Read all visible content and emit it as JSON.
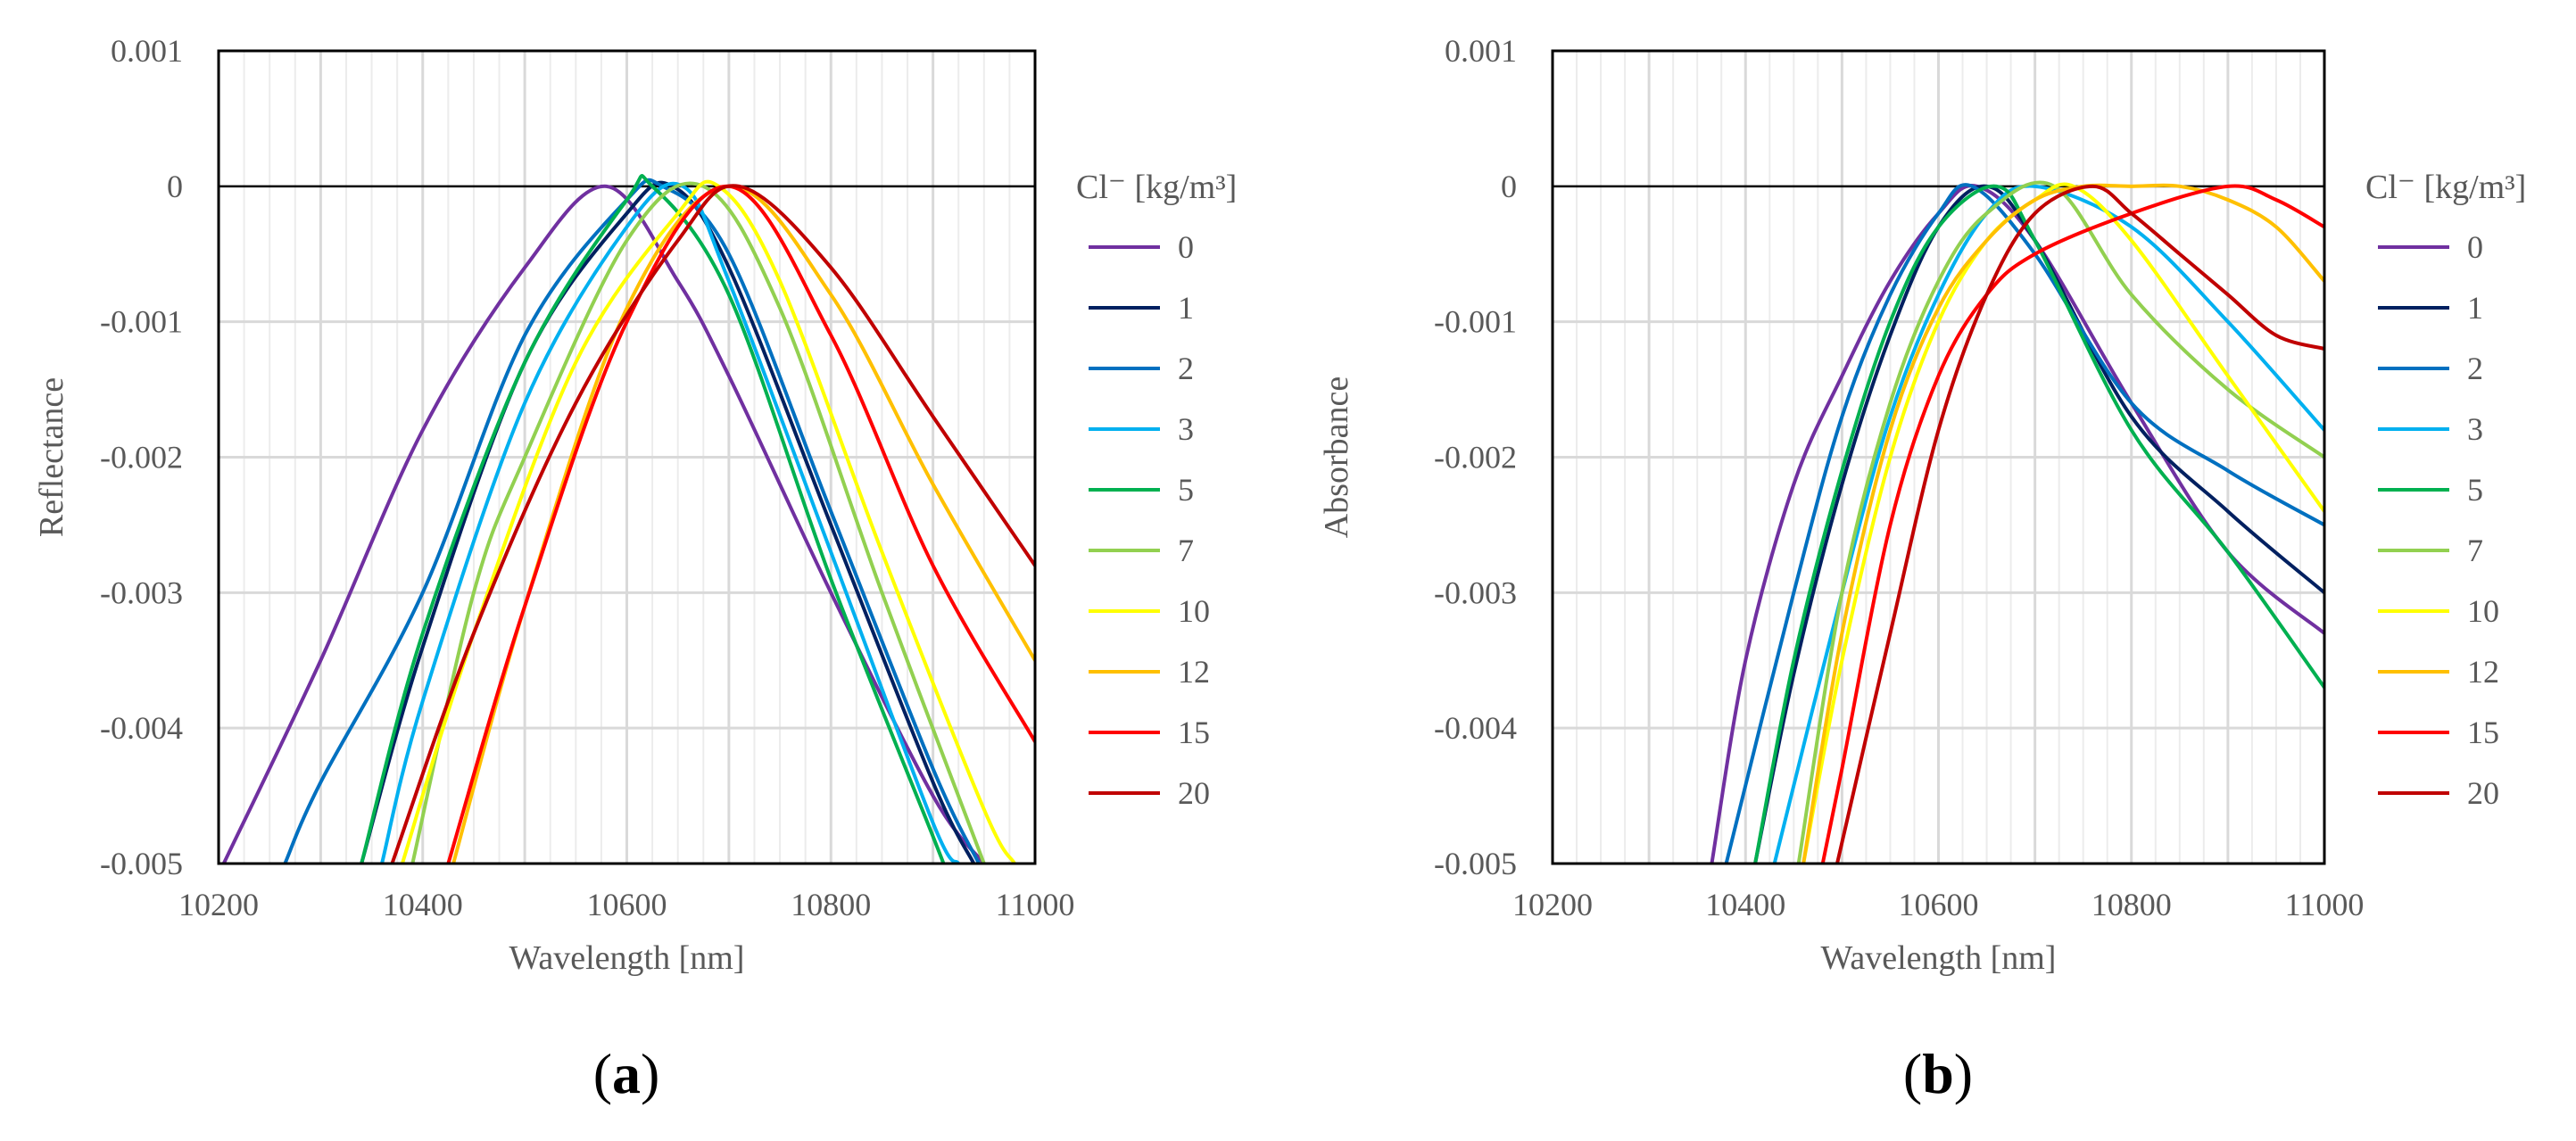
{
  "chart_data": [
    {
      "type": "line",
      "panel_label": "a",
      "xlabel": "Wavelength [nm]",
      "ylabel": "Reflectance",
      "xlim": [
        10200,
        11000
      ],
      "ylim": [
        -0.005,
        0.001
      ],
      "x_ticks": [
        "10200",
        "10400",
        "10600",
        "10800",
        "11000"
      ],
      "y_ticks": [
        "0.001",
        "0",
        "-0.001",
        "-0.002",
        "-0.003",
        "-0.004",
        "-0.005"
      ],
      "legend_title": "Cl⁻ [kg/m³]",
      "legend_position": "right",
      "series": [
        {
          "name": "0",
          "color": "#7030A0",
          "x": [
            10205,
            10300,
            10400,
            10500,
            10580,
            10650,
            10700,
            10800,
            10900,
            10950
          ],
          "y": [
            -0.005,
            -0.0035,
            -0.0018,
            -0.0006,
            0.0,
            -0.0007,
            -0.0014,
            -0.003,
            -0.0045,
            -0.005
          ]
        },
        {
          "name": "1",
          "color": "#002060",
          "x": [
            10340,
            10400,
            10500,
            10600,
            10645,
            10700,
            10800,
            10900,
            10940
          ],
          "y": [
            -0.005,
            -0.0034,
            -0.0013,
            -0.0002,
            0.0,
            -0.0006,
            -0.0025,
            -0.0044,
            -0.005
          ]
        },
        {
          "name": "2",
          "color": "#0070C0",
          "x": [
            10265,
            10300,
            10400,
            10500,
            10600,
            10635,
            10700,
            10800,
            10900,
            10945
          ],
          "y": [
            -0.005,
            -0.0044,
            -0.003,
            -0.0011,
            -0.0001,
            0.0,
            -0.0005,
            -0.0024,
            -0.0043,
            -0.005
          ]
        },
        {
          "name": "3",
          "color": "#00B0F0",
          "x": [
            10360,
            10400,
            10500,
            10600,
            10655,
            10700,
            10800,
            10900,
            10925
          ],
          "y": [
            -0.005,
            -0.0038,
            -0.0016,
            -0.0003,
            0.0,
            -0.0007,
            -0.0027,
            -0.0047,
            -0.005
          ]
        },
        {
          "name": "5",
          "color": "#00B050",
          "x": [
            10340,
            10400,
            10500,
            10600,
            10625,
            10700,
            10800,
            10900,
            10910
          ],
          "y": [
            -0.005,
            -0.0033,
            -0.0013,
            -0.0001,
            0.0,
            -0.0008,
            -0.0029,
            -0.0048,
            -0.005
          ]
        },
        {
          "name": "7",
          "color": "#92D050",
          "x": [
            10390,
            10450,
            10500,
            10600,
            10675,
            10750,
            10850,
            10950
          ],
          "y": [
            -0.005,
            -0.003,
            -0.002,
            -0.0004,
            0.0,
            -0.0009,
            -0.003,
            -0.005
          ]
        },
        {
          "name": "10",
          "color": "#FFFF00",
          "x": [
            10380,
            10450,
            10550,
            10650,
            10690,
            10750,
            10850,
            10950,
            10980
          ],
          "y": [
            -0.005,
            -0.0033,
            -0.0013,
            -0.0002,
            0.0,
            -0.0007,
            -0.0027,
            -0.0046,
            -0.005
          ]
        },
        {
          "name": "12",
          "color": "#FFC000",
          "x": [
            10430,
            10500,
            10600,
            10700,
            10800,
            10900,
            11000
          ],
          "y": [
            -0.005,
            -0.0031,
            -0.0009,
            0.0,
            -0.0008,
            -0.0022,
            -0.0035
          ]
        },
        {
          "name": "15",
          "color": "#FF0000",
          "x": [
            10425,
            10500,
            10600,
            10700,
            10800,
            10900,
            11000
          ],
          "y": [
            -0.005,
            -0.0031,
            -0.001,
            0.0,
            -0.0011,
            -0.0028,
            -0.0041
          ]
        },
        {
          "name": "20",
          "color": "#C00000",
          "x": [
            10370,
            10450,
            10550,
            10650,
            10710,
            10800,
            10900,
            11000
          ],
          "y": [
            -0.005,
            -0.0033,
            -0.0016,
            -0.0004,
            0.0,
            -0.0006,
            -0.0017,
            -0.0028
          ]
        }
      ]
    },
    {
      "type": "line",
      "panel_label": "b",
      "xlabel": "Wavelength [nm]",
      "ylabel": "Absorbance",
      "xlim": [
        10200,
        11000
      ],
      "ylim": [
        -0.005,
        0.001
      ],
      "x_ticks": [
        "10200",
        "10400",
        "10600",
        "10800",
        "11000"
      ],
      "y_ticks": [
        "0.001",
        "0",
        "-0.001",
        "-0.002",
        "-0.003",
        "-0.004",
        "-0.005"
      ],
      "legend_title": "Cl⁻ [kg/m³]",
      "legend_position": "right",
      "series": [
        {
          "name": "0",
          "color": "#7030A0",
          "x": [
            10365,
            10400,
            10450,
            10500,
            10550,
            10600,
            10640,
            10700,
            10800,
            10900,
            11000
          ],
          "y": [
            -0.005,
            -0.0035,
            -0.0022,
            -0.0014,
            -0.0007,
            -0.0002,
            0.0,
            -0.0004,
            -0.0016,
            -0.0027,
            -0.0033
          ]
        },
        {
          "name": "1",
          "color": "#002060",
          "x": [
            10410,
            10450,
            10500,
            10550,
            10600,
            10650,
            10700,
            10800,
            10900,
            11000
          ],
          "y": [
            -0.005,
            -0.0036,
            -0.0022,
            -0.0011,
            -0.0003,
            0.0,
            -0.0004,
            -0.0017,
            -0.0024,
            -0.003
          ]
        },
        {
          "name": "2",
          "color": "#0070C0",
          "x": [
            10380,
            10450,
            10500,
            10550,
            10600,
            10635,
            10700,
            10800,
            10900,
            11000
          ],
          "y": [
            -0.005,
            -0.003,
            -0.0017,
            -0.0008,
            -0.0002,
            0.0,
            -0.0005,
            -0.0016,
            -0.0021,
            -0.0025
          ]
        },
        {
          "name": "3",
          "color": "#00B0F0",
          "x": [
            10430,
            10500,
            10550,
            10600,
            10650,
            10700,
            10800,
            10900,
            11000
          ],
          "y": [
            -0.005,
            -0.003,
            -0.0017,
            -0.0008,
            -0.0002,
            0.0,
            -0.0003,
            -0.001,
            -0.0018
          ]
        },
        {
          "name": "5",
          "color": "#00B050",
          "x": [
            10410,
            10450,
            10500,
            10550,
            10600,
            10660,
            10700,
            10800,
            10900,
            11000
          ],
          "y": [
            -0.005,
            -0.0035,
            -0.0021,
            -0.001,
            -0.0003,
            0.0,
            -0.0004,
            -0.0018,
            -0.0027,
            -0.0037
          ]
        },
        {
          "name": "7",
          "color": "#92D050",
          "x": [
            10455,
            10500,
            10550,
            10600,
            10650,
            10720,
            10800,
            10900,
            11000
          ],
          "y": [
            -0.005,
            -0.003,
            -0.0016,
            -0.0007,
            -0.0002,
            0.0,
            -0.0008,
            -0.0015,
            -0.002
          ]
        },
        {
          "name": "10",
          "color": "#FFFF00",
          "x": [
            10460,
            10500,
            10550,
            10600,
            10650,
            10700,
            10740,
            10800,
            10900,
            11000
          ],
          "y": [
            -0.005,
            -0.0035,
            -0.002,
            -0.001,
            -0.0004,
            -0.0001,
            0.0,
            -0.0004,
            -0.0014,
            -0.0024
          ]
        },
        {
          "name": "12",
          "color": "#FFC000",
          "x": [
            10460,
            10500,
            10550,
            10600,
            10650,
            10700,
            10750,
            10800,
            10850,
            10900,
            10950,
            11000
          ],
          "y": [
            -0.005,
            -0.0033,
            -0.0018,
            -0.0009,
            -0.0004,
            -0.0001,
            0.0,
            0.0,
            0.0,
            -0.0001,
            -0.0003,
            -0.0007
          ]
        },
        {
          "name": "15",
          "color": "#FF0000",
          "x": [
            10480,
            10500,
            10550,
            10600,
            10650,
            10700,
            10800,
            10900,
            10950,
            11000
          ],
          "y": [
            -0.005,
            -0.0043,
            -0.0025,
            -0.0014,
            -0.0008,
            -0.0005,
            -0.0002,
            0.0,
            -0.0001,
            -0.0003
          ]
        },
        {
          "name": "20",
          "color": "#C00000",
          "x": [
            10495,
            10550,
            10600,
            10650,
            10700,
            10760,
            10800,
            10850,
            10900,
            10950,
            11000
          ],
          "y": [
            -0.005,
            -0.0033,
            -0.0018,
            -0.0008,
            -0.0002,
            0.0,
            -0.0002,
            -0.0005,
            -0.0008,
            -0.0011,
            -0.0012
          ]
        }
      ]
    }
  ]
}
